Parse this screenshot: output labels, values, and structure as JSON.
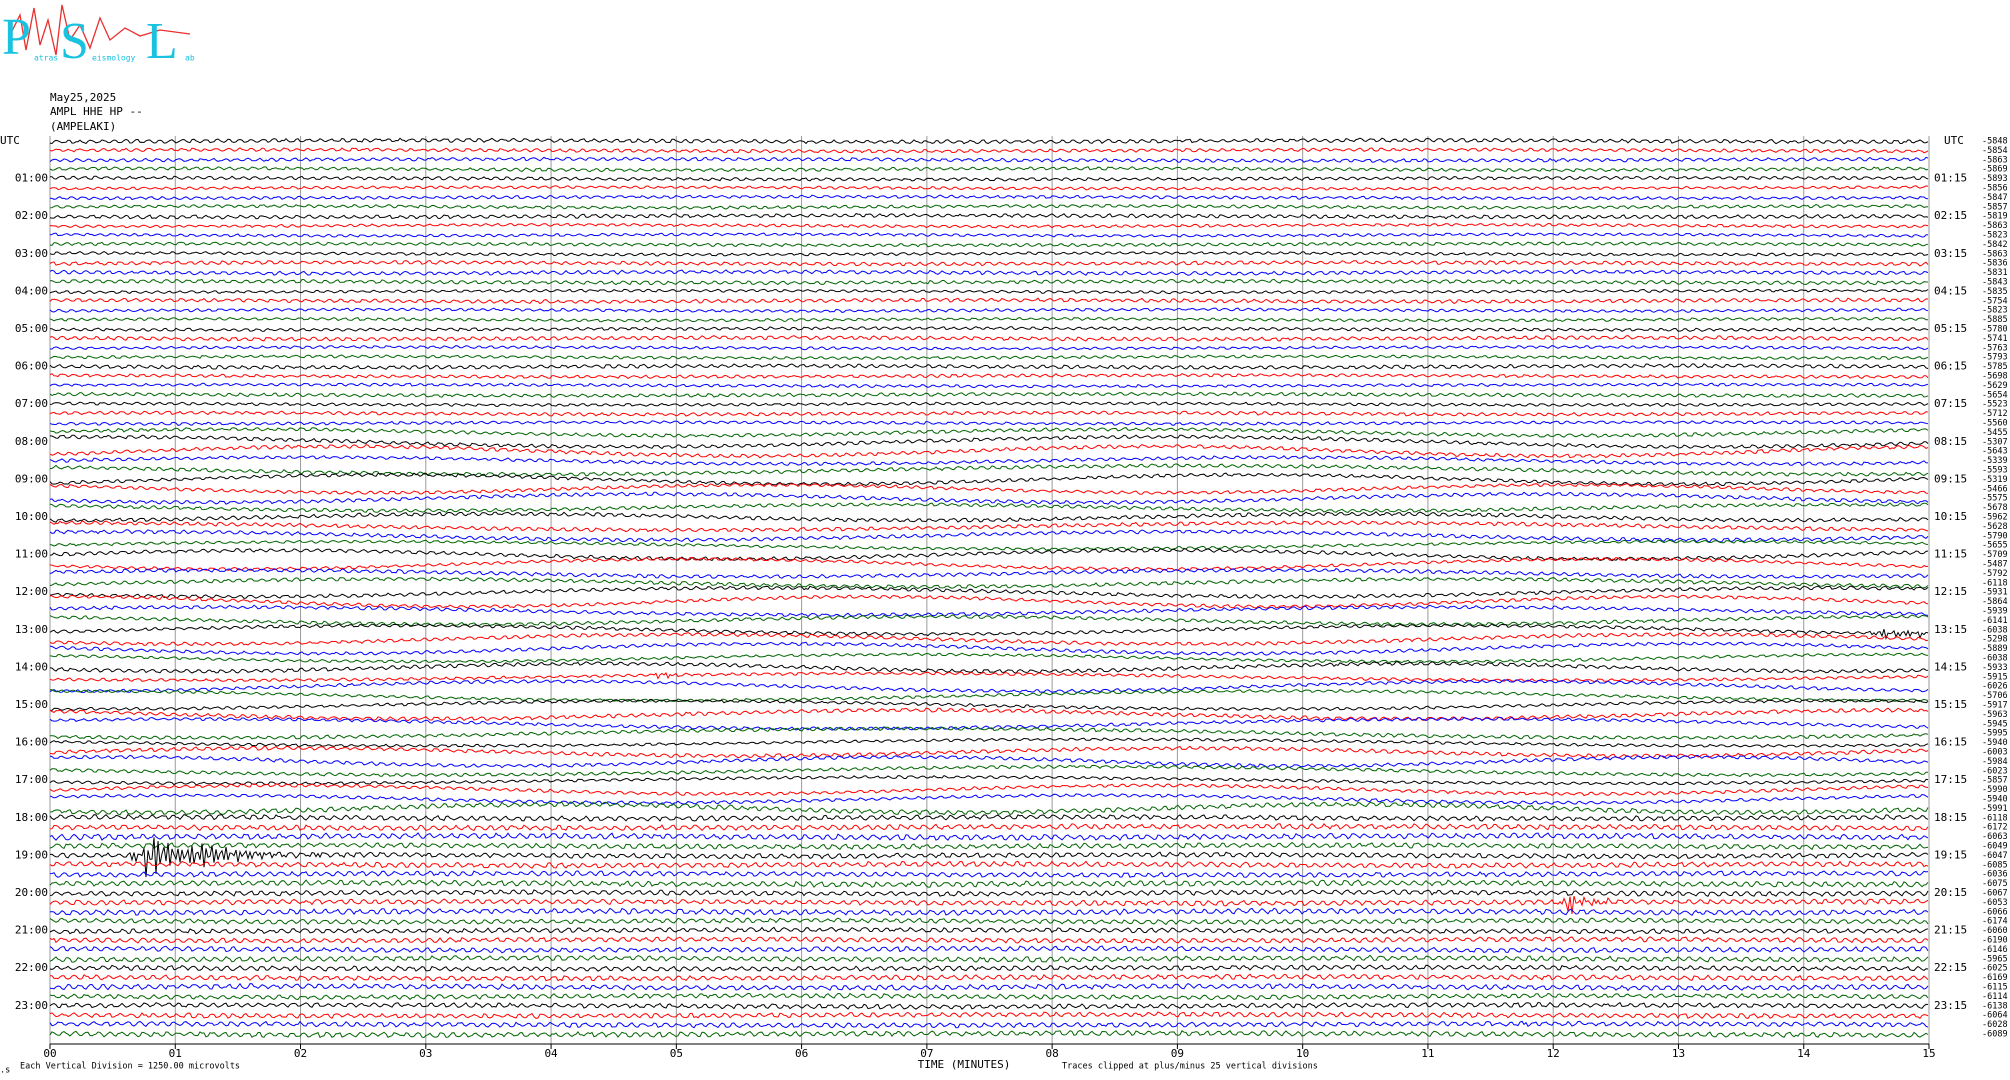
{
  "logo": {
    "letters": [
      "P",
      "S",
      "L"
    ],
    "words": [
      "atras",
      "eismology",
      "ab"
    ]
  },
  "header": {
    "date": "May25,2025",
    "channel": "AMPL HHE HP --",
    "station": "(AMPELAKI)"
  },
  "left_axis": {
    "title": "UTC",
    "labels": [
      "01:00",
      "02:00",
      "03:00",
      "04:00",
      "05:00",
      "06:00",
      "07:00",
      "08:00",
      "09:00",
      "10:00",
      "11:00",
      "12:00",
      "13:00",
      "14:00",
      "15:00",
      "16:00",
      "17:00",
      "18:00",
      "19:00",
      "20:00",
      "21:00",
      "22:00",
      "23:00"
    ]
  },
  "right_axis": {
    "title": "UTC",
    "labels": [
      "01:15",
      "02:15",
      "03:15",
      "04:15",
      "05:15",
      "06:15",
      "07:15",
      "08:15",
      "09:15",
      "10:15",
      "11:15",
      "12:15",
      "13:15",
      "14:15",
      "15:15",
      "16:15",
      "17:15",
      "18:15",
      "19:15",
      "20:15",
      "21:15",
      "22:15",
      "23:15"
    ]
  },
  "trace_offsets": [
    -5848,
    -5854,
    -5863,
    -5869,
    -5893,
    -5856,
    -5847,
    -5857,
    -5819,
    -5863,
    -5823,
    -5842,
    -5863,
    -5836,
    -5831,
    -5843,
    -5835,
    -5754,
    -5823,
    -5885,
    -5780,
    -5741,
    -5763,
    -5793,
    -5785,
    -5698,
    -5629,
    -5654,
    -5523,
    -5712,
    -5560,
    -5455,
    -5307,
    -5643,
    -5339,
    -5593,
    -5319,
    -5466,
    -5575,
    -5678,
    -5962,
    -5628,
    -5790,
    -5655,
    -5709,
    -5487,
    -5792,
    -6118,
    -5931,
    -5864,
    -5939,
    -6141,
    -6038,
    -5298,
    -5889,
    -6038,
    -5933,
    -5915,
    -6026,
    -5706,
    -5917,
    -5963,
    -5945,
    -5995,
    -5940,
    -6003,
    -5984,
    -6023,
    -5857,
    -5990,
    -5940,
    -5991,
    -6118,
    -6172,
    -6063,
    -6049,
    -6047,
    -6085,
    -6036,
    -6075,
    -6067,
    -6053,
    -6066,
    -6174,
    -6060,
    -6190,
    -6146,
    -5965,
    -6025,
    -6169,
    -6115,
    -6114,
    -6138,
    -6064,
    -6028,
    -6089
  ],
  "trace_colors": [
    "#000000",
    "#ff0000",
    "#0000ff",
    "#006400"
  ],
  "x_axis": {
    "title": "TIME (MINUTES)",
    "ticks": [
      "00",
      "01",
      "02",
      "03",
      "04",
      "05",
      "06",
      "07",
      "08",
      "09",
      "10",
      "11",
      "12",
      "13",
      "14",
      "15"
    ]
  },
  "footer": {
    "scale": "Each Vertical Division = 1250.00 microvolts",
    "clip": "Traces clipped at plus/minus 25 vertical divisions"
  }
}
